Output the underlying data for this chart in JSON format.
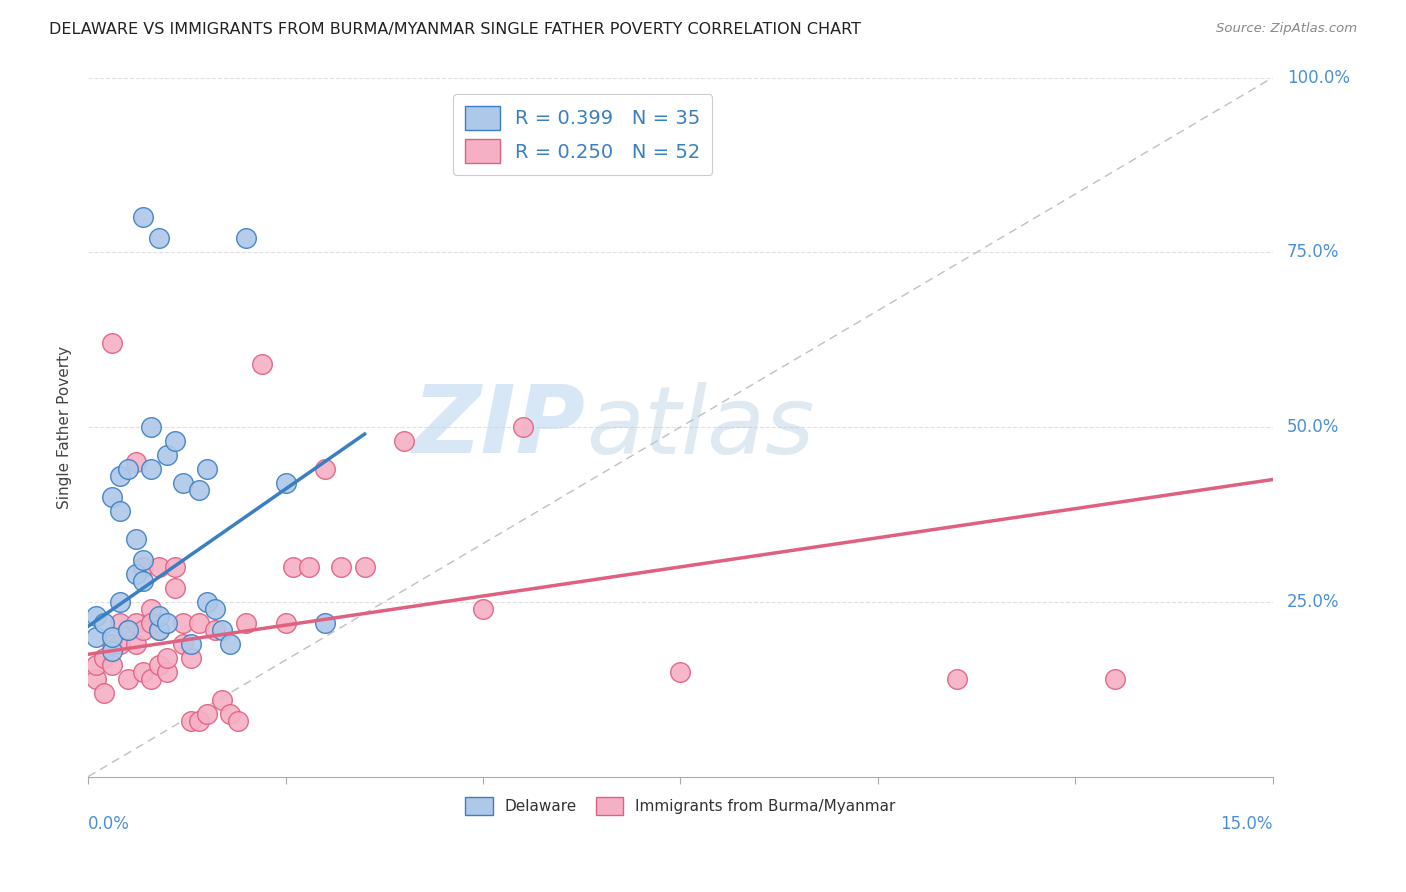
{
  "title": "DELAWARE VS IMMIGRANTS FROM BURMA/MYANMAR SINGLE FATHER POVERTY CORRELATION CHART",
  "source": "Source: ZipAtlas.com",
  "ylabel": "Single Father Poverty",
  "xmin": 0.0,
  "xmax": 0.15,
  "ymin": 0.0,
  "ymax": 1.0,
  "delaware_R": 0.399,
  "delaware_N": 35,
  "burma_R": 0.25,
  "burma_N": 52,
  "delaware_color": "#adc8e8",
  "burma_color": "#f5b0c5",
  "line_delaware_color": "#3a7fc1",
  "line_burma_color": "#e06080",
  "legend_text_color": "#3a7fc1",
  "watermark_zip": "ZIP",
  "watermark_atlas": "atlas",
  "background_color": "#ffffff",
  "grid_color": "#e0e0e0",
  "delaware_x": [
    0.001,
    0.001,
    0.002,
    0.003,
    0.003,
    0.003,
    0.004,
    0.004,
    0.004,
    0.005,
    0.005,
    0.006,
    0.006,
    0.007,
    0.007,
    0.007,
    0.008,
    0.008,
    0.009,
    0.009,
    0.009,
    0.01,
    0.01,
    0.011,
    0.012,
    0.013,
    0.014,
    0.015,
    0.015,
    0.016,
    0.017,
    0.018,
    0.02,
    0.025,
    0.03
  ],
  "delaware_y": [
    0.2,
    0.23,
    0.22,
    0.18,
    0.2,
    0.4,
    0.25,
    0.38,
    0.43,
    0.21,
    0.44,
    0.29,
    0.34,
    0.28,
    0.31,
    0.8,
    0.44,
    0.5,
    0.21,
    0.23,
    0.77,
    0.22,
    0.46,
    0.48,
    0.42,
    0.19,
    0.41,
    0.44,
    0.25,
    0.24,
    0.21,
    0.19,
    0.77,
    0.42,
    0.22
  ],
  "burma_x": [
    0.001,
    0.001,
    0.002,
    0.002,
    0.003,
    0.003,
    0.003,
    0.004,
    0.004,
    0.005,
    0.005,
    0.006,
    0.006,
    0.006,
    0.007,
    0.007,
    0.007,
    0.008,
    0.008,
    0.008,
    0.009,
    0.009,
    0.009,
    0.01,
    0.01,
    0.011,
    0.011,
    0.012,
    0.012,
    0.013,
    0.013,
    0.014,
    0.014,
    0.015,
    0.016,
    0.017,
    0.018,
    0.019,
    0.02,
    0.022,
    0.025,
    0.026,
    0.028,
    0.03,
    0.032,
    0.035,
    0.04,
    0.05,
    0.055,
    0.075,
    0.11,
    0.13
  ],
  "burma_y": [
    0.14,
    0.16,
    0.12,
    0.17,
    0.19,
    0.62,
    0.16,
    0.19,
    0.22,
    0.14,
    0.21,
    0.19,
    0.45,
    0.22,
    0.21,
    0.3,
    0.15,
    0.14,
    0.24,
    0.22,
    0.21,
    0.3,
    0.16,
    0.15,
    0.17,
    0.27,
    0.3,
    0.19,
    0.22,
    0.17,
    0.08,
    0.22,
    0.08,
    0.09,
    0.21,
    0.11,
    0.09,
    0.08,
    0.22,
    0.59,
    0.22,
    0.3,
    0.3,
    0.44,
    0.3,
    0.3,
    0.48,
    0.24,
    0.5,
    0.15,
    0.14,
    0.14
  ],
  "del_line_x0": 0.0,
  "del_line_x1": 0.035,
  "del_line_y0": 0.215,
  "del_line_y1": 0.49,
  "bur_line_x0": 0.0,
  "bur_line_x1": 0.15,
  "bur_line_y0": 0.175,
  "bur_line_y1": 0.425
}
